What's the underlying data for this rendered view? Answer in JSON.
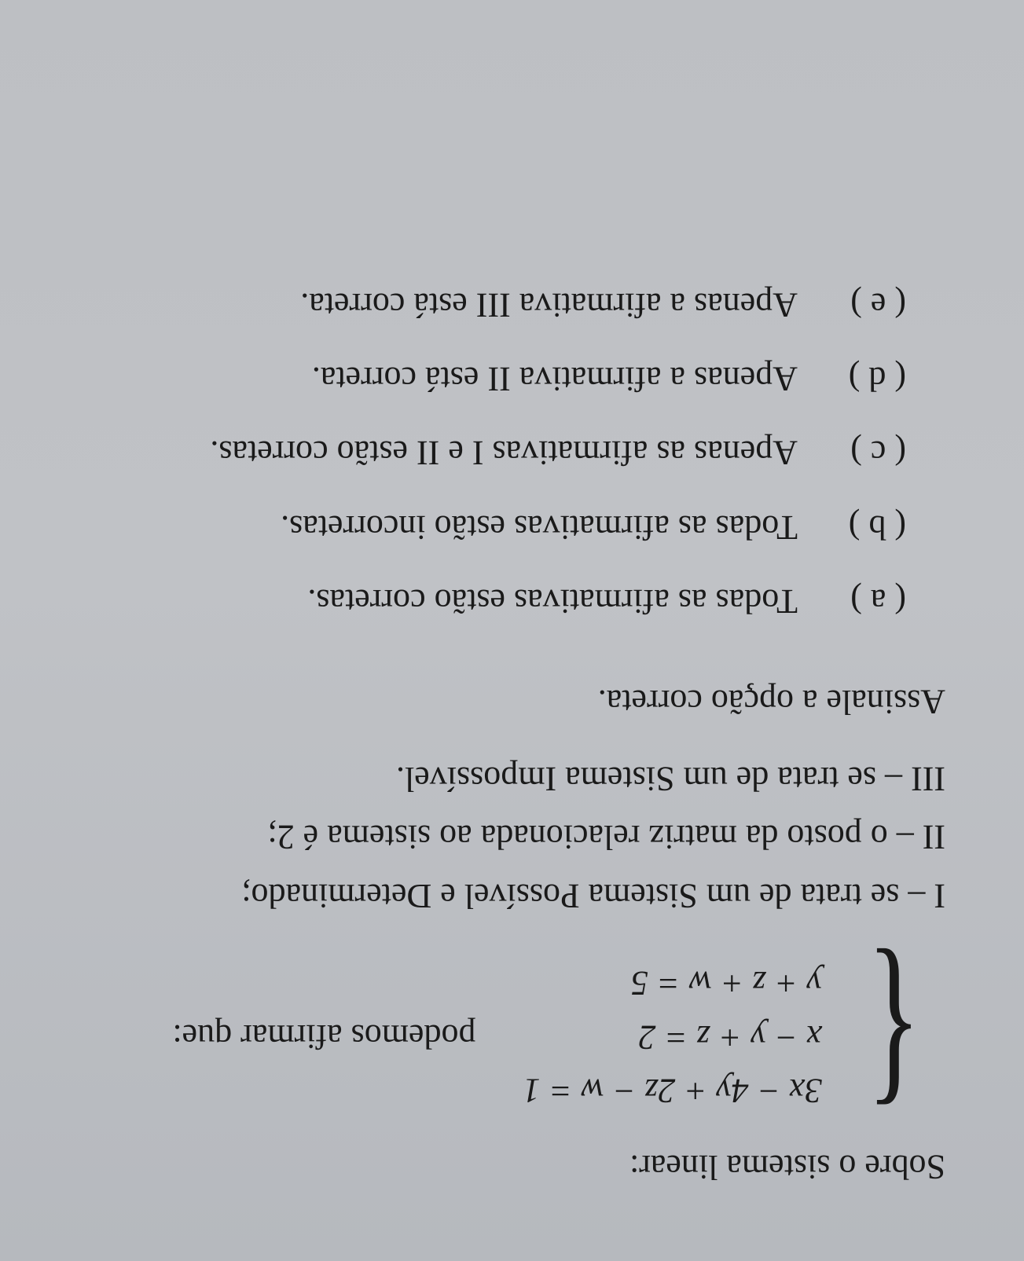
{
  "intro": "Sobre o sistema linear:",
  "system": {
    "eq1": "3x − 4y + 2z − w = 1",
    "eq2": "x − y + z = 2",
    "eq3": "y + z + w = 5"
  },
  "afirmar": "podemos afirmar que:",
  "statements": {
    "s1": "I – se trata de um Sistema Possível e Determinado;",
    "s2": "II – o posto da matriz relacionada ao sistema é 2;",
    "s3": "III – se trata de um Sistema Impossível."
  },
  "instruction": "Assinale a opção correta.",
  "options": {
    "a": {
      "label": "( a )",
      "text": "Todas as afirmativas estão corretas."
    },
    "b": {
      "label": "( b )",
      "text": "Todas as afirmativas estão incorretas."
    },
    "c": {
      "label": "( c )",
      "text": "Apenas as afirmativas I e II estão corretas."
    },
    "d": {
      "label": "( d )",
      "text": "Apenas a afirmativa II está correta."
    },
    "e": {
      "label": "( e )",
      "text": "Apenas a afirmativa III está correta."
    }
  }
}
